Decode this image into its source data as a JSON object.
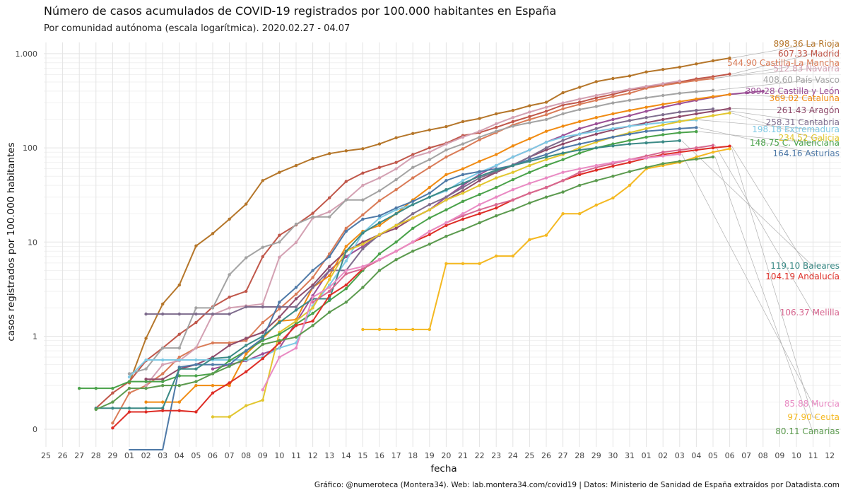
{
  "title": "Número de casos acumulados de COVID-19 registrados por 100.000 habitantes en España",
  "subtitle": "Por comunidad autónoma (escala logarítmica). 2020.02.27 - 04.07",
  "caption": "Gráfico: @numeroteca (Montera34). Web: lab.montera34.com/covid19 | Datos: Ministerio de Sanidad de España extraídos por Datadista.com",
  "chart_data": {
    "type": "line",
    "title": "Número de casos acumulados de COVID-19 registrados por 100.000 habitantes en España",
    "subtitle": "Por comunidad autónoma (escala logarítmica). 2020.02.27 - 04.07",
    "xlabel": "fecha",
    "ylabel": "casos registrados por 100.000 habitantes",
    "x_scale": "date",
    "y_scale": "log",
    "xlim": [
      "2020-02-25",
      "2020-04-12"
    ],
    "y_ticks": [
      {
        "value": 0,
        "label": "0"
      },
      {
        "value": 1,
        "label": "1"
      },
      {
        "value": 10,
        "label": "10"
      },
      {
        "value": 100,
        "label": "100"
      },
      {
        "value": 1000,
        "label": "1.000"
      }
    ],
    "x_tick_labels": [
      "25",
      "26",
      "27",
      "28",
      "29",
      "01",
      "02",
      "03",
      "04",
      "05",
      "06",
      "07",
      "08",
      "09",
      "10",
      "11",
      "12",
      "13",
      "14",
      "15",
      "16",
      "17",
      "18",
      "19",
      "20",
      "21",
      "22",
      "23",
      "24",
      "25",
      "26",
      "27",
      "28",
      "29",
      "30",
      "31",
      "01",
      "02",
      "03",
      "04",
      "05",
      "06",
      "07",
      "08",
      "09",
      "10",
      "11",
      "12"
    ],
    "grid": true,
    "legend": "labels at line ends (right)",
    "series": [
      {
        "name": "La Rioja",
        "end_label": "898.36 La Rioja",
        "color": "#b5762a",
        "start": "2020-03-01",
        "values": [
          0.32,
          0.95,
          2.2,
          3.5,
          9.1,
          12.3,
          17.5,
          25.3,
          45,
          55,
          65,
          77,
          87,
          93,
          98,
          110,
          128,
          142,
          155,
          168,
          190,
          205,
          230,
          250,
          280,
          305,
          385,
          440,
          505,
          545,
          580,
          640,
          680,
          720,
          780,
          840,
          898.36
        ]
      },
      {
        "name": "Madrid",
        "end_label": "607.33 Madrid",
        "color": "#c0574a",
        "start": "2020-02-28",
        "values": [
          0.17,
          0.25,
          0.33,
          0.55,
          0.75,
          1.05,
          1.4,
          2.05,
          2.6,
          3.0,
          7.0,
          11.8,
          15.2,
          20.2,
          29.5,
          44,
          54,
          62,
          70,
          85,
          100,
          112,
          135,
          145,
          165,
          190,
          215,
          245,
          285,
          305,
          340,
          370,
          410,
          440,
          470,
          500,
          540,
          570,
          607.33
        ]
      },
      {
        "name": "Castilla-La Mancha",
        "end_label": "544.90 Castilla-La Mancha",
        "color": "#d97b57",
        "start": "2020-02-29",
        "values": [
          0.05,
          0.25,
          0.3,
          0.4,
          0.6,
          0.75,
          0.85,
          0.85,
          0.9,
          1.4,
          1.95,
          2.8,
          4.2,
          7.5,
          14,
          19.5,
          27.5,
          36,
          48,
          62,
          80,
          98,
          122,
          145,
          175,
          200,
          225,
          260,
          290,
          320,
          350,
          380,
          430,
          460,
          490,
          520,
          544.9
        ]
      },
      {
        "name": "Navarra",
        "end_label": "512.83 Navarra",
        "color": "#d3a0b2",
        "start": "2020-03-02",
        "values": [
          0.3,
          0.5,
          0.55,
          0.75,
          1.7,
          2.0,
          2.1,
          2.2,
          6.9,
          9.9,
          18,
          21,
          28,
          40,
          48,
          60,
          80,
          90,
          110,
          130,
          150,
          180,
          210,
          240,
          270,
          300,
          330,
          360,
          390,
          420,
          450,
          480,
          512.83
        ]
      },
      {
        "name": "País Vasco",
        "end_label": "408.60 País Vasco",
        "color": "#a3a3a3",
        "start": "2020-03-01",
        "values": [
          0.4,
          0.45,
          0.75,
          0.75,
          2.0,
          2.0,
          4.5,
          6.8,
          8.8,
          10,
          15.5,
          18.5,
          18.5,
          28,
          28,
          35,
          46,
          62,
          75,
          95,
          110,
          130,
          150,
          170,
          185,
          200,
          230,
          255,
          275,
          300,
          320,
          340,
          360,
          380,
          395,
          408.6
        ]
      },
      {
        "name": "Castilla y León",
        "end_label": "399.28 Castilla y León",
        "color": "#9b4f96",
        "start": "2020-03-06",
        "values": [
          0.45,
          0.5,
          0.55,
          0.65,
          0.75,
          1.4,
          2.7,
          5.0,
          7.0,
          9.0,
          11.8,
          15,
          18,
          22,
          30,
          40,
          52,
          65,
          80,
          95,
          115,
          135,
          160,
          180,
          200,
          220,
          245,
          270,
          295,
          320,
          345,
          370,
          385,
          399.28
        ]
      },
      {
        "name": "Cataluña",
        "end_label": "369.02 Cataluña",
        "color": "#f08b12",
        "start": "2020-03-02",
        "values": [
          0.2,
          0.2,
          0.2,
          0.3,
          0.3,
          0.3,
          0.65,
          0.95,
          1.45,
          1.5,
          3.3,
          4.4,
          9,
          13,
          15,
          20,
          28,
          38,
          52,
          60,
          72,
          85,
          105,
          125,
          150,
          170,
          190,
          210,
          230,
          250,
          270,
          290,
          310,
          330,
          350,
          369.02
        ]
      },
      {
        "name": "Aragón",
        "end_label": "261.43 Aragón",
        "color": "#8f4a6a",
        "start": "2020-03-02",
        "values": [
          0.35,
          0.35,
          0.45,
          0.5,
          0.6,
          0.8,
          0.95,
          1.1,
          1.6,
          2.5,
          3.5,
          5.5,
          8,
          10,
          12,
          14,
          18,
          22,
          28,
          35,
          45,
          55,
          65,
          80,
          95,
          110,
          125,
          140,
          155,
          170,
          185,
          200,
          215,
          230,
          245,
          261.43
        ]
      },
      {
        "name": "Cantabria",
        "end_label": "258.31 Cantabria",
        "color": "#7e6c8d",
        "start": "2020-03-02",
        "values": [
          1.72,
          1.72,
          1.72,
          1.72,
          1.72,
          1.72,
          2.05,
          2.05,
          2.05,
          2.05,
          3.3,
          5.0,
          5.0,
          8.5,
          12,
          15,
          20,
          25,
          30,
          38,
          48,
          56,
          66,
          80,
          100,
          120,
          140,
          160,
          180,
          195,
          210,
          225,
          240,
          250,
          258.31
        ]
      },
      {
        "name": "Extremadura",
        "end_label": "198.18 Extremadura",
        "color": "#7ec9e4",
        "start": "2020-03-01",
        "values": [
          0.37,
          0.56,
          0.56,
          0.56,
          0.56,
          0.56,
          0.56,
          0.56,
          0.6,
          0.75,
          0.85,
          2.1,
          3.5,
          6.3,
          12.5,
          18,
          22,
          25,
          30,
          35,
          45,
          55,
          65,
          80,
          95,
          115,
          130,
          140,
          150,
          160,
          170,
          178,
          186,
          193,
          198.18
        ]
      },
      {
        "name": "Galicia",
        "end_label": "234.52 Galicia",
        "color": "#e2c62e",
        "start": "2020-03-06",
        "values": [
          0.1,
          0.1,
          0.19,
          0.21,
          1.1,
          1.45,
          2.0,
          4.0,
          8.0,
          9.5,
          12,
          15,
          18,
          22,
          28,
          33,
          40,
          48,
          55,
          65,
          75,
          85,
          100,
          115,
          130,
          145,
          160,
          175,
          190,
          205,
          220,
          234.52
        ]
      },
      {
        "name": "C. Valenciana",
        "end_label": "148.75 C. Valenciana",
        "color": "#4aa24a",
        "start": "2020-02-27",
        "values": [
          0.28,
          0.28,
          0.28,
          0.33,
          0.33,
          0.33,
          0.38,
          0.38,
          0.4,
          0.55,
          0.7,
          0.9,
          1.05,
          1.35,
          1.75,
          2.4,
          3.2,
          5.0,
          7.5,
          10,
          14,
          18,
          22,
          27,
          32,
          38,
          46,
          55,
          65,
          75,
          88,
          100,
          110,
          120,
          130,
          138,
          145,
          148.75
        ]
      },
      {
        "name": "Asturias",
        "end_label": "164.16 Asturias",
        "color": "#4e79a7",
        "start": "2020-03-01",
        "values": [
          0,
          0,
          0,
          0.47,
          0.5,
          0.5,
          0.5,
          0.7,
          0.95,
          2.3,
          3.3,
          5.0,
          7.0,
          13,
          17.5,
          19,
          23,
          27,
          33,
          45,
          52,
          56,
          60,
          65,
          75,
          85,
          100,
          110,
          120,
          130,
          140,
          150,
          155,
          160,
          164.16
        ]
      },
      {
        "name": "Baleares",
        "end_label": "119.10 Baleares",
        "color": "#3b8a86",
        "start": "2020-02-28",
        "values": [
          0.17,
          0.17,
          0.17,
          0.17,
          0.17,
          0.45,
          0.45,
          0.58,
          0.6,
          0.8,
          1.0,
          1.4,
          1.9,
          2.5,
          2.5,
          8.0,
          12.5,
          16,
          20,
          25,
          30,
          36,
          42,
          50,
          58,
          65,
          72,
          80,
          88,
          95,
          100,
          105,
          110,
          113,
          116,
          119.1
        ]
      },
      {
        "name": "Andalucía",
        "end_label": "104.19 Andalucía",
        "color": "#de2d26",
        "start": "2020-02-29",
        "values": [
          0.01,
          0.14,
          0.14,
          0.15,
          0.15,
          0.14,
          0.25,
          0.32,
          0.42,
          0.58,
          0.85,
          1.3,
          1.45,
          2.7,
          3.5,
          5.2,
          6.5,
          8,
          10,
          12,
          15,
          17.5,
          20,
          23,
          28,
          33,
          38,
          45,
          52,
          58,
          64,
          70,
          78,
          85,
          90,
          95,
          100,
          104.19
        ]
      },
      {
        "name": "Melilla",
        "end_label": "106.37 Melilla",
        "color": "#d76790",
        "start": "2020-03-12",
        "values": [
          2.3,
          3.0,
          4.6,
          5.2,
          6.5,
          8,
          10,
          13,
          16,
          19,
          22,
          25,
          28,
          33,
          38,
          45,
          55,
          62,
          68,
          75,
          82,
          90,
          95,
          100,
          106.37
        ]
      },
      {
        "name": "Murcia",
        "end_label": "85.88 Murcia",
        "color": "#e98ac3",
        "start": "2020-03-09",
        "values": [
          0.27,
          0.6,
          0.75,
          2.6,
          3.3,
          5.0,
          5.5,
          6.5,
          8,
          10,
          13,
          16,
          20,
          25,
          30,
          36,
          42,
          48,
          55,
          60,
          65,
          70,
          75,
          78,
          82,
          85.88
        ]
      },
      {
        "name": "Ceuta",
        "end_label": "97.90 Ceuta",
        "color": "#f4b820",
        "start": "2020-03-15",
        "values": [
          1.18,
          1.18,
          1.18,
          1.18,
          1.18,
          5.9,
          5.9,
          5.9,
          7.1,
          7.1,
          10.6,
          11.8,
          20,
          20,
          24.7,
          29.4,
          40,
          60,
          65,
          70,
          80,
          90,
          97.9
        ]
      },
      {
        "name": "Canarias",
        "end_label": "80.11 Canarias",
        "color": "#5b9a4e",
        "start": "2020-02-28",
        "values": [
          0.16,
          0.2,
          0.28,
          0.28,
          0.3,
          0.3,
          0.33,
          0.4,
          0.48,
          0.58,
          0.82,
          0.9,
          0.98,
          1.3,
          1.8,
          2.3,
          3.3,
          5.0,
          6.5,
          8,
          9.5,
          11.5,
          13.5,
          16,
          19,
          22,
          26,
          30,
          34,
          40,
          45,
          50,
          56,
          62,
          68,
          72,
          76,
          80.11
        ]
      }
    ]
  }
}
